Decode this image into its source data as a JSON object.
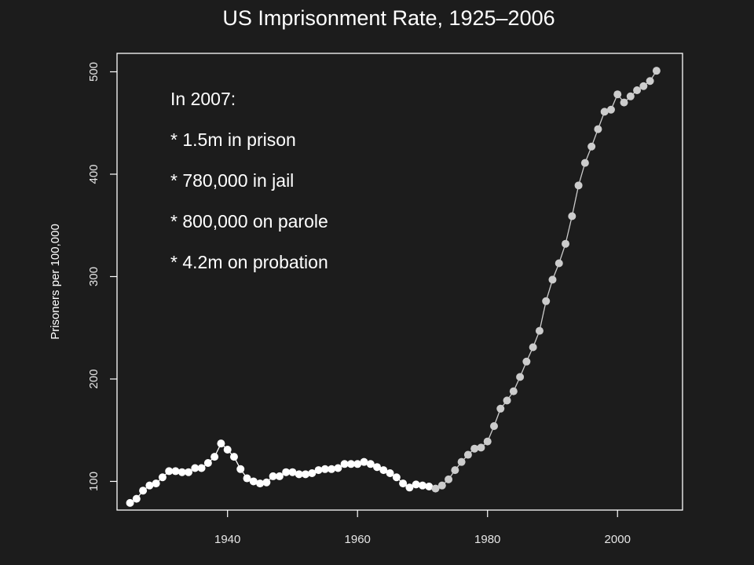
{
  "chart_data": {
    "type": "line",
    "title": "US Imprisonment Rate, 1925–2006",
    "xlabel": "",
    "ylabel": "Prisoners per 100,000",
    "xlim": [
      1923,
      2010
    ],
    "ylim": [
      72,
      518
    ],
    "x_ticks": [
      1940,
      1960,
      1980,
      2000
    ],
    "y_ticks": [
      100,
      200,
      300,
      400,
      500
    ],
    "grid": false,
    "legend": "none",
    "colors": {
      "background": "#1c1c1c",
      "frame": "#ffffff",
      "series_early": "#ffffff",
      "series_late": "#cccccc"
    },
    "highlight_from_year": 1972,
    "annotations": [
      "In 2007:",
      "* 1.5m in prison",
      "* 780,000 in jail",
      "* 800,000 on parole",
      "* 4.2m on probation"
    ],
    "series": [
      {
        "x": [
          1925,
          1926,
          1927,
          1928,
          1929,
          1930,
          1931,
          1932,
          1933,
          1934,
          1935,
          1936,
          1937,
          1938,
          1939,
          1940,
          1941,
          1942,
          1943,
          1944,
          1945,
          1946,
          1947,
          1948,
          1949,
          1950,
          1951,
          1952,
          1953,
          1954,
          1955,
          1956,
          1957,
          1958,
          1959,
          1960,
          1961,
          1962,
          1963,
          1964,
          1965,
          1966,
          1967,
          1968,
          1969,
          1970,
          1971,
          1972,
          1973,
          1974,
          1975,
          1976,
          1977,
          1978,
          1979,
          1980,
          1981,
          1982,
          1983,
          1984,
          1985,
          1986,
          1987,
          1988,
          1989,
          1990,
          1991,
          1992,
          1993,
          1994,
          1995,
          1996,
          1997,
          1998,
          1999,
          2000,
          2001,
          2002,
          2003,
          2004,
          2005,
          2006
        ],
        "values": [
          79,
          83,
          91,
          96,
          98,
          104,
          110,
          110,
          109,
          109,
          113,
          113,
          118,
          124,
          137,
          131,
          124,
          112,
          103,
          100,
          98,
          99,
          105,
          105,
          109,
          109,
          107,
          107,
          108,
          111,
          112,
          112,
          113,
          117,
          117,
          117,
          119,
          117,
          114,
          111,
          108,
          104,
          98,
          94,
          97,
          96,
          95,
          93,
          96,
          102,
          111,
          119,
          126,
          132,
          133,
          139,
          154,
          171,
          179,
          188,
          202,
          217,
          231,
          247,
          276,
          297,
          313,
          332,
          359,
          389,
          411,
          427,
          444,
          461,
          463,
          478,
          470,
          476,
          482,
          486,
          491,
          501
        ]
      }
    ]
  }
}
